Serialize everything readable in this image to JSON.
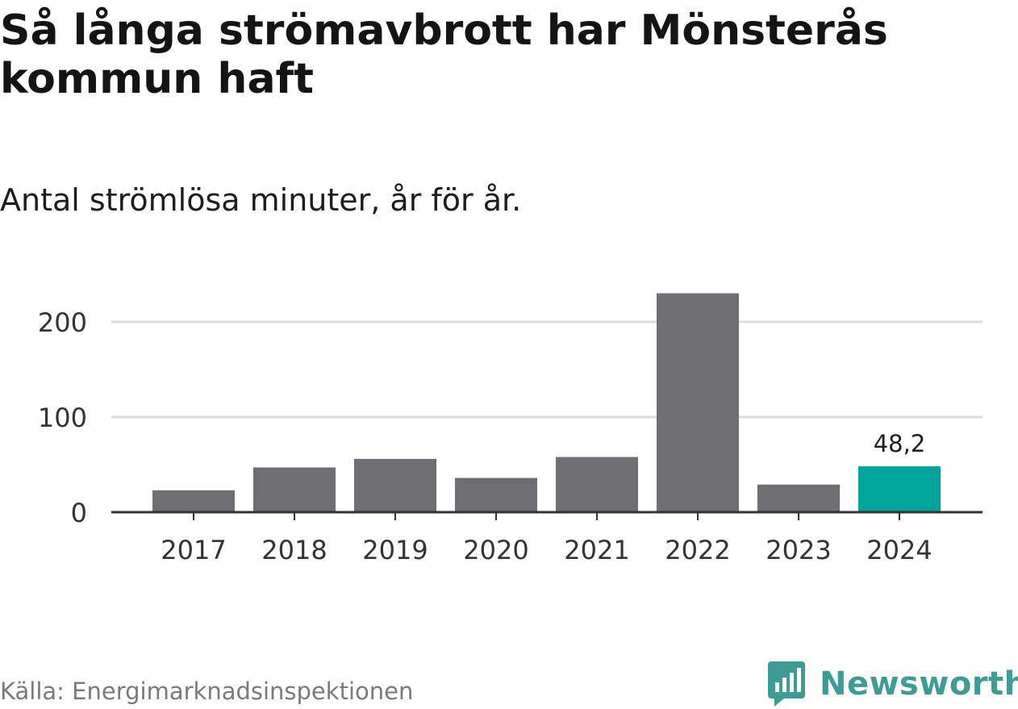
{
  "chart_data": {
    "type": "bar",
    "title": "Så långa strömavbrott har Mönsterås kommun haft",
    "subtitle": "Antal strömlösa minuter, år för år.",
    "categories": [
      "2017",
      "2018",
      "2019",
      "2020",
      "2021",
      "2022",
      "2023",
      "2024"
    ],
    "values": [
      23,
      47,
      56,
      36,
      58,
      230,
      29,
      48.2
    ],
    "highlight_index": 7,
    "highlight_label": "48,2",
    "yticks": [
      "0",
      "100",
      "200"
    ],
    "ytick_values": [
      0,
      100,
      200
    ],
    "ylim": [
      0,
      235
    ],
    "grid": true,
    "colors": {
      "bar": "#6e6e73",
      "highlight": "#00a59a",
      "grid": "#dcdcdc",
      "axis": "#333333"
    }
  },
  "footer": {
    "source": "Källa: Energimarknadsinspektionen",
    "brand": "Newsworthy"
  },
  "icons": {
    "brand_logo": "newsworthy-logo-icon"
  }
}
